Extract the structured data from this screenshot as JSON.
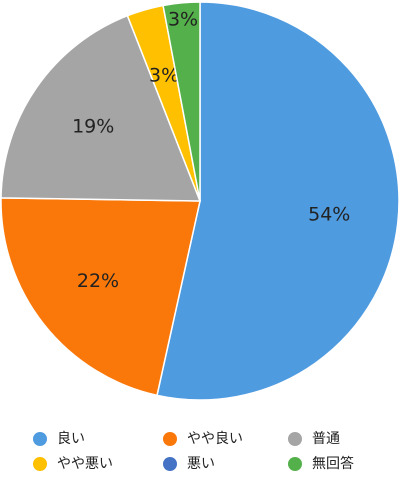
{
  "chart_data": {
    "type": "pie",
    "categories": [
      "良い",
      "やや良い",
      "普通",
      "やや悪い",
      "悪い",
      "無回答"
    ],
    "values": [
      54,
      22,
      19,
      3,
      0,
      3
    ],
    "value_labels": [
      "54%",
      "22%",
      "19%",
      "3%",
      null,
      "3%"
    ],
    "colors": [
      "#4f9be0",
      "#fa780a",
      "#a5a5a5",
      "#ffc000",
      "#4472c4",
      "#54b04a"
    ],
    "legend": "bottom"
  }
}
